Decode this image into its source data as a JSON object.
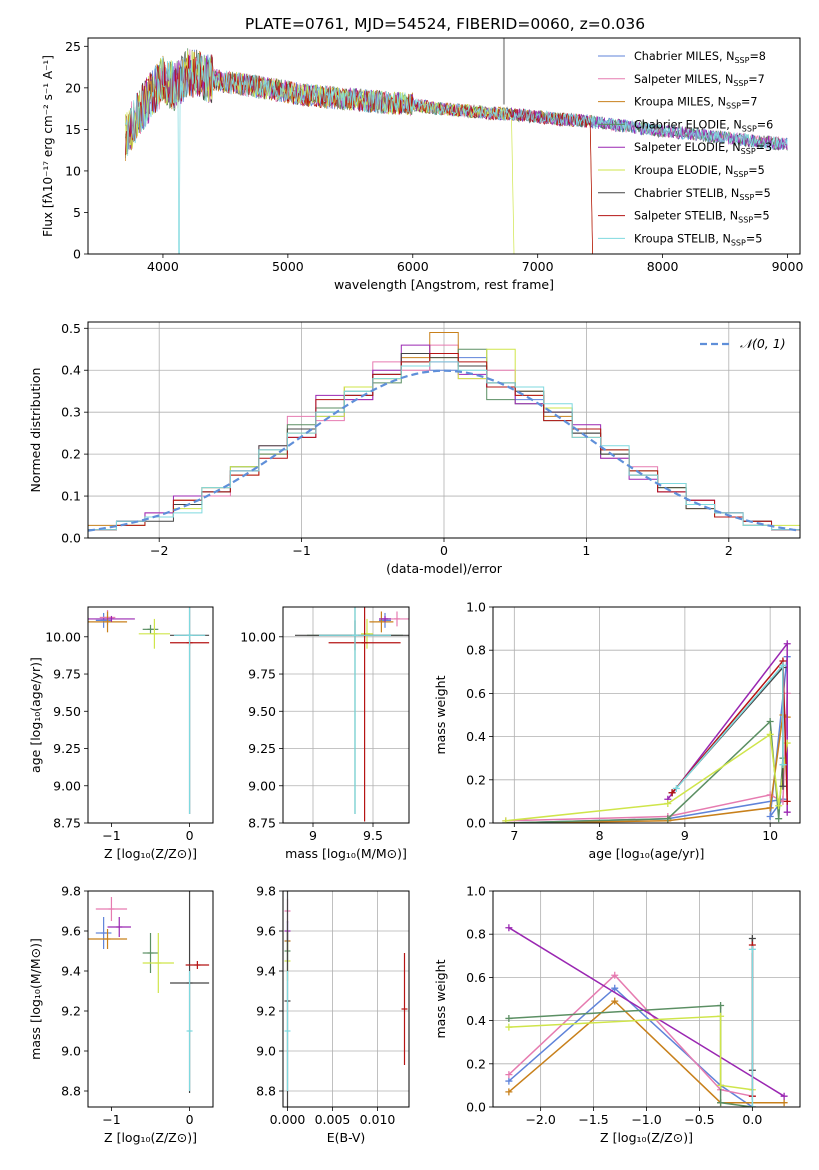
{
  "title": "PLATE=0761, MJD=54524, FIBERID=0060, z=0.036",
  "colors": [
    "#5f83d9",
    "#e67bb0",
    "#c8801b",
    "#5b8f63",
    "#9a27b2",
    "#cfe54a",
    "#444444",
    "#b51414",
    "#7fd9df"
  ],
  "chart_data": [
    {
      "id": "spectrum",
      "type": "line",
      "xlabel": "wavelength [Angstrom, rest frame]",
      "ylabel": "Flux [fλ10⁻¹⁷ erg cm⁻² s⁻¹ A⁻¹]",
      "xlim": [
        3400,
        9100
      ],
      "ylim": [
        0,
        26
      ],
      "xticks": [
        4000,
        5000,
        6000,
        7000,
        8000,
        9000
      ],
      "yticks": [
        0,
        5,
        10,
        15,
        20,
        25
      ],
      "x": [
        3700,
        3800,
        3900,
        4000,
        4100,
        4200,
        4400,
        4600,
        4800,
        5000,
        5200,
        5400,
        5600,
        5800,
        6000,
        6200,
        6400,
        6600,
        6800,
        7000,
        7200,
        7400,
        7600,
        7800,
        8000,
        8200,
        8400,
        8600,
        8800,
        9000
      ],
      "y": [
        14,
        17,
        19,
        21,
        20,
        22,
        21,
        20.5,
        20,
        19.5,
        19,
        18.8,
        18.5,
        18.2,
        18,
        17.5,
        17.3,
        17,
        16.8,
        16.5,
        16.2,
        16,
        15.6,
        15.2,
        14.8,
        14.5,
        14.2,
        13.8,
        13.5,
        13.2
      ],
      "legend": [
        {
          "label": "Chabrier MILES, N",
          "sub": "SSP",
          "suffix": "=8"
        },
        {
          "label": "Salpeter MILES, N",
          "sub": "SSP",
          "suffix": "=7"
        },
        {
          "label": "Kroupa MILES, N",
          "sub": "SSP",
          "suffix": "=7"
        },
        {
          "label": "Chabrier ELODIE, N",
          "sub": "SSP",
          "suffix": "=6"
        },
        {
          "label": "Salpeter ELODIE, N",
          "sub": "SSP",
          "suffix": "=3"
        },
        {
          "label": "Kroupa ELODIE, N",
          "sub": "SSP",
          "suffix": "=5"
        },
        {
          "label": "Chabrier STELIB, N",
          "sub": "SSP",
          "suffix": "=5"
        },
        {
          "label": "Salpeter STELIB, N",
          "sub": "SSP",
          "suffix": "=5"
        },
        {
          "label": "Kroupa STELIB, N",
          "sub": "SSP",
          "suffix": "=5"
        }
      ]
    },
    {
      "id": "residuals",
      "type": "line",
      "xlabel": "(data-model)/error",
      "ylabel": "Normed distribution",
      "xlim": [
        -2.5,
        2.5
      ],
      "ylim": [
        0,
        0.515
      ],
      "xticks": [
        -2,
        -1,
        0,
        1,
        2
      ],
      "yticks": [
        0.0,
        0.1,
        0.2,
        0.3,
        0.4,
        0.5
      ],
      "legend": "𝒩(0, 1)",
      "bins": [
        -2.5,
        -2.3,
        -2.1,
        -1.9,
        -1.7,
        -1.5,
        -1.3,
        -1.1,
        -0.9,
        -0.7,
        -0.5,
        -0.3,
        -0.1,
        0.1,
        0.3,
        0.5,
        0.7,
        0.9,
        1.1,
        1.3,
        1.5,
        1.7,
        1.9,
        2.1,
        2.3
      ],
      "series": [
        {
          "values": [
            0.02,
            0.04,
            0.05,
            0.08,
            0.11,
            0.17,
            0.21,
            0.26,
            0.29,
            0.34,
            0.39,
            0.44,
            0.4,
            0.43,
            0.36,
            0.33,
            0.31,
            0.26,
            0.21,
            0.16,
            0.12,
            0.08,
            0.06,
            0.03,
            0.02
          ]
        },
        {
          "values": [
            0.02,
            0.03,
            0.06,
            0.09,
            0.1,
            0.16,
            0.22,
            0.29,
            0.28,
            0.33,
            0.42,
            0.4,
            0.46,
            0.38,
            0.4,
            0.35,
            0.3,
            0.25,
            0.19,
            0.17,
            0.11,
            0.09,
            0.05,
            0.04,
            0.02
          ]
        },
        {
          "values": [
            0.03,
            0.04,
            0.05,
            0.09,
            0.12,
            0.15,
            0.2,
            0.25,
            0.3,
            0.36,
            0.38,
            0.43,
            0.49,
            0.41,
            0.37,
            0.34,
            0.29,
            0.24,
            0.2,
            0.15,
            0.13,
            0.07,
            0.06,
            0.03,
            0.02
          ]
        },
        {
          "values": [
            0.02,
            0.03,
            0.05,
            0.08,
            0.11,
            0.17,
            0.2,
            0.27,
            0.31,
            0.35,
            0.37,
            0.42,
            0.44,
            0.45,
            0.33,
            0.32,
            0.28,
            0.25,
            0.2,
            0.16,
            0.12,
            0.08,
            0.05,
            0.04,
            0.02
          ]
        },
        {
          "values": [
            0.02,
            0.04,
            0.06,
            0.1,
            0.12,
            0.16,
            0.21,
            0.24,
            0.34,
            0.33,
            0.4,
            0.46,
            0.42,
            0.39,
            0.36,
            0.32,
            0.3,
            0.27,
            0.19,
            0.14,
            0.11,
            0.09,
            0.06,
            0.03,
            0.02
          ]
        },
        {
          "values": [
            0.02,
            0.03,
            0.05,
            0.07,
            0.12,
            0.17,
            0.21,
            0.26,
            0.29,
            0.36,
            0.38,
            0.41,
            0.43,
            0.38,
            0.45,
            0.35,
            0.31,
            0.26,
            0.21,
            0.16,
            0.12,
            0.08,
            0.05,
            0.03,
            0.03
          ]
        },
        {
          "values": [
            0.02,
            0.04,
            0.04,
            0.08,
            0.11,
            0.16,
            0.22,
            0.26,
            0.3,
            0.34,
            0.39,
            0.44,
            0.43,
            0.41,
            0.37,
            0.35,
            0.3,
            0.25,
            0.2,
            0.15,
            0.12,
            0.07,
            0.06,
            0.04,
            0.02
          ]
        },
        {
          "values": [
            0.02,
            0.03,
            0.05,
            0.09,
            0.11,
            0.15,
            0.19,
            0.24,
            0.33,
            0.34,
            0.39,
            0.42,
            0.44,
            0.42,
            0.36,
            0.34,
            0.28,
            0.26,
            0.21,
            0.16,
            0.11,
            0.09,
            0.05,
            0.04,
            0.02
          ]
        },
        {
          "values": [
            0.02,
            0.04,
            0.05,
            0.06,
            0.12,
            0.16,
            0.21,
            0.25,
            0.3,
            0.35,
            0.38,
            0.41,
            0.42,
            0.4,
            0.37,
            0.36,
            0.32,
            0.24,
            0.22,
            0.15,
            0.13,
            0.08,
            0.06,
            0.03,
            0.02
          ]
        }
      ]
    },
    {
      "id": "z-age",
      "type": "scatter",
      "xlabel": "Z [log₁₀(Z/Z⊙)]",
      "ylabel": "age  [log₁₀(age/yr)]",
      "xlim": [
        -1.3,
        0.3
      ],
      "ylim": [
        8.75,
        10.2
      ],
      "xticks": [
        -1,
        0
      ],
      "yticks": [
        8.75,
        9.0,
        9.25,
        9.5,
        9.75,
        10.0
      ],
      "points": [
        {
          "x": -1.1,
          "y": 10.11,
          "xerr": 0.1,
          "yerr": 0.05
        },
        {
          "x": -1.05,
          "y": 10.13,
          "xerr": 0.1,
          "yerr": 0.05
        },
        {
          "x": -1.05,
          "y": 10.1,
          "xerr": 0.25,
          "yerr": 0.07
        },
        {
          "x": -0.5,
          "y": 10.05,
          "xerr": 0.1,
          "yerr": 0.03
        },
        {
          "x": -1.0,
          "y": 10.12,
          "xerr": 0.3,
          "yerr": 0.02
        },
        {
          "x": -0.45,
          "y": 10.02,
          "xerr": 0.2,
          "yerr": 0.1
        },
        {
          "x": 0.0,
          "y": 10.01,
          "xerr": 0.25,
          "yerr": 1.2
        },
        {
          "x": 0.0,
          "y": 9.96,
          "xerr": 0.25,
          "yerr": 0.02
        },
        {
          "x": 0.0,
          "y": 10.01,
          "xerr": 0.2,
          "yerr": 1.2
        }
      ]
    },
    {
      "id": "mass-age",
      "type": "scatter",
      "xlabel": "mass [log₁₀(M/M⊙)]",
      "ylabel": "",
      "xlim": [
        8.75,
        9.8
      ],
      "ylim": [
        8.75,
        10.2
      ],
      "xticks": [
        9.0,
        9.5
      ],
      "yticks": [
        8.75,
        9.0,
        9.25,
        9.5,
        9.75,
        10.0
      ],
      "points": [
        {
          "x": 9.6,
          "y": 10.11,
          "xerr": 0.05,
          "yerr": 0.05
        },
        {
          "x": 9.7,
          "y": 10.12,
          "xerr": 0.1,
          "yerr": 0.05
        },
        {
          "x": 9.57,
          "y": 10.1,
          "xerr": 0.1,
          "yerr": 0.07
        },
        {
          "x": 9.35,
          "y": 10.01,
          "xerr": 0.4,
          "yerr": 1.2
        },
        {
          "x": 9.6,
          "y": 10.12,
          "xerr": 0.05,
          "yerr": 0.02
        },
        {
          "x": 9.45,
          "y": 10.02,
          "xerr": 0.05,
          "yerr": 0.1
        },
        {
          "x": 9.35,
          "y": 10.01,
          "xerr": 0.5,
          "yerr": 0.1
        },
        {
          "x": 9.43,
          "y": 9.96,
          "xerr": 0.3,
          "yerr": 1.2
        },
        {
          "x": 9.35,
          "y": 10.01,
          "xerr": 0.3,
          "yerr": 1.2
        }
      ]
    },
    {
      "id": "age-weight",
      "type": "line",
      "xlabel": "age  [log₁₀(age/yr)]",
      "ylabel": "mass weight",
      "xlim": [
        6.75,
        10.35
      ],
      "ylim": [
        0,
        1
      ],
      "xticks": [
        7,
        8,
        9,
        10
      ],
      "yticks": [
        0.0,
        0.2,
        0.4,
        0.6,
        0.8,
        1.0
      ],
      "series": [
        {
          "x": [
            6.9,
            8.8,
            10.15,
            10.0,
            10.2
          ],
          "y": [
            0.0,
            0.02,
            0.11,
            0.03,
            0.77
          ]
        },
        {
          "x": [
            6.9,
            8.8,
            10.0,
            10.15,
            10.2
          ],
          "y": [
            0.01,
            0.03,
            0.13,
            0.1,
            0.6
          ]
        },
        {
          "x": [
            6.9,
            8.8,
            10.0,
            10.15,
            10.2
          ],
          "y": [
            0.0,
            0.01,
            0.07,
            0.5,
            0.49
          ]
        },
        {
          "x": [
            6.9,
            8.8,
            10.0,
            10.1,
            10.15
          ],
          "y": [
            0.0,
            0.02,
            0.47,
            0.02,
            0.3
          ]
        },
        {
          "x": [
            8.8,
            10.2,
            10.2
          ],
          "y": [
            0.11,
            0.83,
            0.05
          ]
        },
        {
          "x": [
            6.9,
            8.8,
            10.0,
            10.1,
            10.2
          ],
          "y": [
            0.01,
            0.09,
            0.41,
            0.08,
            0.37
          ]
        },
        {
          "x": [
            8.85,
            10.15,
            10.15
          ],
          "y": [
            0.14,
            0.72,
            0.17
          ]
        },
        {
          "x": [
            8.85,
            10.15,
            10.2
          ],
          "y": [
            0.14,
            0.75,
            0.1
          ]
        },
        {
          "x": [
            8.9,
            10.15,
            10.15
          ],
          "y": [
            0.16,
            0.73,
            0.27
          ]
        }
      ]
    },
    {
      "id": "z-mass",
      "type": "scatter",
      "xlabel": "Z [log₁₀(Z/Z⊙)]",
      "ylabel": "mass [log₁₀(M/M⊙)]",
      "xlim": [
        -1.3,
        0.3
      ],
      "ylim": [
        8.72,
        9.8
      ],
      "xticks": [
        -1,
        0
      ],
      "yticks": [
        8.8,
        9.0,
        9.2,
        9.4,
        9.6,
        9.8
      ],
      "points": [
        {
          "x": -1.1,
          "y": 9.59,
          "xerr": 0.1,
          "yerr": 0.08
        },
        {
          "x": -1.0,
          "y": 9.71,
          "xerr": 0.2,
          "yerr": 0.06
        },
        {
          "x": -1.05,
          "y": 9.56,
          "xerr": 0.25,
          "yerr": 0.05
        },
        {
          "x": -0.5,
          "y": 9.49,
          "xerr": 0.1,
          "yerr": 0.1
        },
        {
          "x": -0.9,
          "y": 9.62,
          "xerr": 0.15,
          "yerr": 0.05
        },
        {
          "x": -0.4,
          "y": 9.44,
          "xerr": 0.2,
          "yerr": 0.15
        },
        {
          "x": 0.0,
          "y": 9.34,
          "xerr": 0.25,
          "yerr": 0.55
        },
        {
          "x": 0.1,
          "y": 9.43,
          "xerr": 0.15,
          "yerr": 0.02
        },
        {
          "x": 0.0,
          "y": 9.1,
          "xerr": 0.02,
          "yerr": 0.3
        }
      ]
    },
    {
      "id": "ebv-mass",
      "type": "scatter",
      "xlabel": "E(B-V)",
      "ylabel": "",
      "xlim": [
        -0.0005,
        0.0135
      ],
      "ylim": [
        8.72,
        9.8
      ],
      "xticks": [
        0.0,
        0.005,
        0.01
      ],
      "xticklabels": [
        "0.000",
        "0.005",
        "0.010"
      ],
      "yticks": [
        8.8,
        9.0,
        9.2,
        9.4,
        9.6,
        9.8
      ],
      "points": [
        {
          "x": 0.0,
          "y": 9.55,
          "xerr": 0,
          "yerr": 0.1
        },
        {
          "x": 0.0,
          "y": 9.7,
          "xerr": 0,
          "yerr": 0.06
        },
        {
          "x": 0.0,
          "y": 9.55,
          "xerr": 0,
          "yerr": 0.05
        },
        {
          "x": 0.0,
          "y": 9.5,
          "xerr": 0,
          "yerr": 0.1
        },
        {
          "x": 0.0,
          "y": 9.6,
          "xerr": 0,
          "yerr": 0.05
        },
        {
          "x": 0.0,
          "y": 9.45,
          "xerr": 0,
          "yerr": 0.1
        },
        {
          "x": 0.0,
          "y": 9.25,
          "xerr": 0,
          "yerr": 0.55
        },
        {
          "x": 0.013,
          "y": 9.21,
          "xerr": 0,
          "yerr": 0.28
        },
        {
          "x": 0.0,
          "y": 9.1,
          "xerr": 0,
          "yerr": 0.3
        }
      ]
    },
    {
      "id": "z-weight",
      "type": "line",
      "xlabel": "Z [log₁₀(Z/Z⊙)]",
      "ylabel": "mass weight",
      "xlim": [
        -2.45,
        0.45
      ],
      "ylim": [
        0,
        1
      ],
      "xticks": [
        -2.0,
        -1.5,
        -1.0,
        -0.5,
        0.0
      ],
      "xticklabels": [
        "−2.0",
        "−1.5",
        "−1.0",
        "−0.5",
        "0.0"
      ],
      "yticks": [
        0.0,
        0.2,
        0.4,
        0.6,
        0.8,
        1.0
      ],
      "series": [
        {
          "x": [
            -2.3,
            -1.3,
            -0.3,
            0.0
          ],
          "y": [
            0.12,
            0.55,
            0.1,
            0.0
          ]
        },
        {
          "x": [
            -2.3,
            -1.3,
            -0.3,
            0.0
          ],
          "y": [
            0.15,
            0.61,
            0.08,
            0.05
          ]
        },
        {
          "x": [
            -2.3,
            -1.3,
            -0.3,
            0.3
          ],
          "y": [
            0.07,
            0.49,
            0.02,
            0.02
          ]
        },
        {
          "x": [
            -2.3,
            -0.3,
            -0.3,
            0.0
          ],
          "y": [
            0.41,
            0.47,
            0.02,
            0.0
          ]
        },
        {
          "x": [
            -2.3,
            0.3
          ],
          "y": [
            0.83,
            0.05
          ]
        },
        {
          "x": [
            -2.3,
            -0.3,
            -0.3,
            0.0
          ],
          "y": [
            0.37,
            0.42,
            0.1,
            0.08
          ]
        },
        {
          "x": [
            0.0,
            0.0
          ],
          "y": [
            0.78,
            0.17
          ]
        },
        {
          "x": [
            0.0,
            0.0
          ],
          "y": [
            0.75,
            0.05
          ]
        },
        {
          "x": [
            0.0,
            0.0
          ],
          "y": [
            0.73,
            0.0
          ]
        }
      ]
    }
  ]
}
